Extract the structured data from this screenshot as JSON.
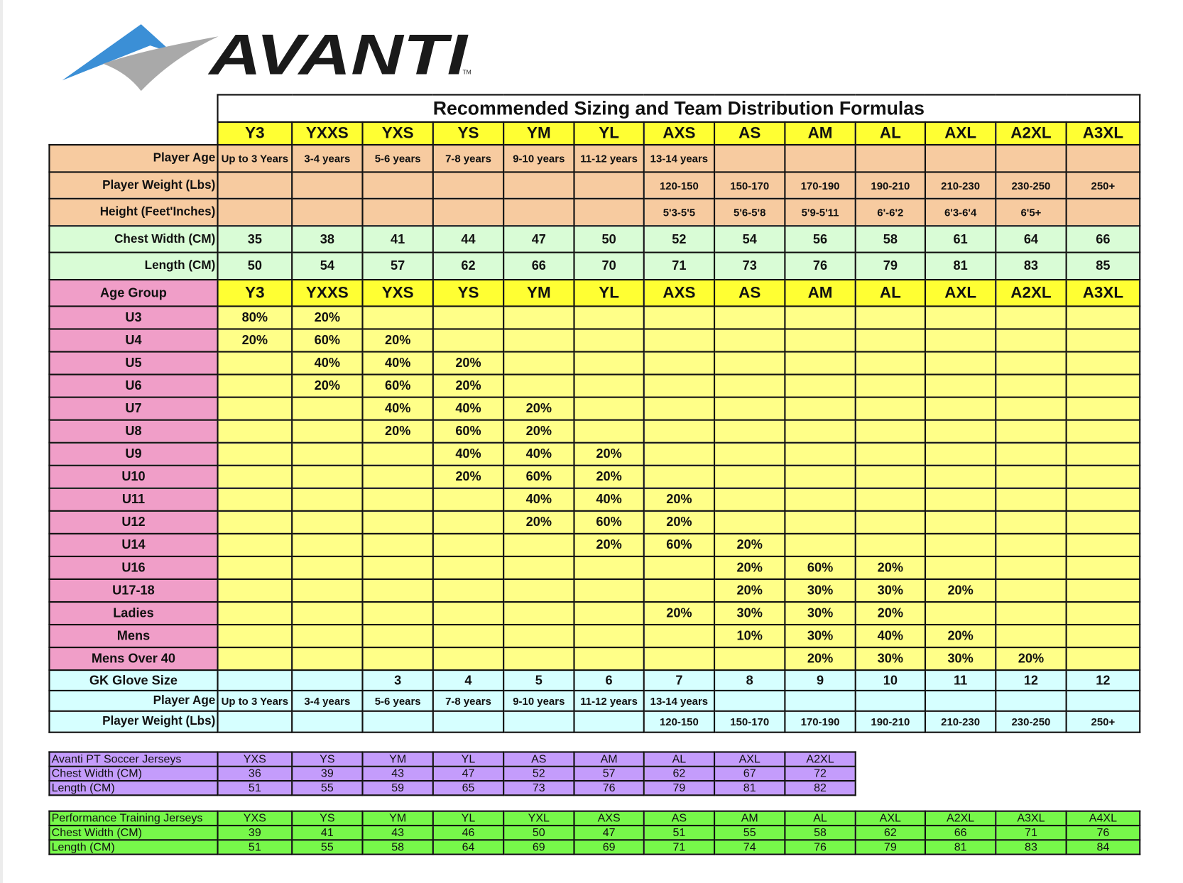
{
  "logo": {
    "text": "AVANTI",
    "tm": "TM",
    "colors": {
      "blue": "#3b8fd6",
      "gray": "#a9a9a9",
      "text": "#1a1a1a"
    }
  },
  "title": "Recommended Sizing and Team Distribution Formulas",
  "sizes": [
    "Y3",
    "YXXS",
    "YXS",
    "YS",
    "YM",
    "YL",
    "AXS",
    "AS",
    "AM",
    "AL",
    "AXL",
    "A2XL",
    "A3XL"
  ],
  "spec_rows": [
    {
      "label": "Player Age",
      "values": [
        "Up to 3 Years",
        "3-4 years",
        "5-6  years",
        "7-8 years",
        "9-10 years",
        "11-12 years",
        "13-14 years",
        "",
        "",
        "",
        "",
        "",
        ""
      ]
    },
    {
      "label": "Player Weight (Lbs)",
      "values": [
        "",
        "",
        "",
        "",
        "",
        "",
        "120-150",
        "150-170",
        "170-190",
        "190-210",
        "210-230",
        "230-250",
        "250+"
      ]
    },
    {
      "label": "Height (Feet'Inches)",
      "values": [
        "",
        "",
        "",
        "",
        "",
        "",
        "5'3-5'5",
        "5'6-5'8",
        "5'9-5'11",
        "6'-6'2",
        "6'3-6'4",
        "6'5+",
        ""
      ]
    },
    {
      "label": "Chest Width (CM)",
      "values": [
        "35",
        "38",
        "41",
        "44",
        "47",
        "50",
        "52",
        "54",
        "56",
        "58",
        "61",
        "64",
        "66"
      ]
    },
    {
      "label": "Length (CM)",
      "values": [
        "50",
        "54",
        "57",
        "62",
        "66",
        "70",
        "71",
        "73",
        "76",
        "79",
        "81",
        "83",
        "85"
      ]
    }
  ],
  "age_group_header": "Age Group",
  "distribution": [
    {
      "group": "U3",
      "values": [
        "80%",
        "20%",
        "",
        "",
        "",
        "",
        "",
        "",
        "",
        "",
        "",
        "",
        ""
      ]
    },
    {
      "group": "U4",
      "values": [
        "20%",
        "60%",
        "20%",
        "",
        "",
        "",
        "",
        "",
        "",
        "",
        "",
        "",
        ""
      ]
    },
    {
      "group": "U5",
      "values": [
        "",
        "40%",
        "40%",
        "20%",
        "",
        "",
        "",
        "",
        "",
        "",
        "",
        "",
        ""
      ]
    },
    {
      "group": "U6",
      "values": [
        "",
        "20%",
        "60%",
        "20%",
        "",
        "",
        "",
        "",
        "",
        "",
        "",
        "",
        ""
      ]
    },
    {
      "group": "U7",
      "values": [
        "",
        "",
        "40%",
        "40%",
        "20%",
        "",
        "",
        "",
        "",
        "",
        "",
        "",
        ""
      ]
    },
    {
      "group": "U8",
      "values": [
        "",
        "",
        "20%",
        "60%",
        "20%",
        "",
        "",
        "",
        "",
        "",
        "",
        "",
        ""
      ]
    },
    {
      "group": "U9",
      "values": [
        "",
        "",
        "",
        "40%",
        "40%",
        "20%",
        "",
        "",
        "",
        "",
        "",
        "",
        ""
      ]
    },
    {
      "group": "U10",
      "values": [
        "",
        "",
        "",
        "20%",
        "60%",
        "20%",
        "",
        "",
        "",
        "",
        "",
        "",
        ""
      ]
    },
    {
      "group": "U11",
      "values": [
        "",
        "",
        "",
        "",
        "40%",
        "40%",
        "20%",
        "",
        "",
        "",
        "",
        "",
        ""
      ]
    },
    {
      "group": "U12",
      "values": [
        "",
        "",
        "",
        "",
        "20%",
        "60%",
        "20%",
        "",
        "",
        "",
        "",
        "",
        ""
      ]
    },
    {
      "group": "U14",
      "values": [
        "",
        "",
        "",
        "",
        "",
        "20%",
        "60%",
        "20%",
        "",
        "",
        "",
        "",
        ""
      ]
    },
    {
      "group": "U16",
      "values": [
        "",
        "",
        "",
        "",
        "",
        "",
        "",
        "20%",
        "60%",
        "20%",
        "",
        "",
        ""
      ]
    },
    {
      "group": "U17-18",
      "values": [
        "",
        "",
        "",
        "",
        "",
        "",
        "",
        "20%",
        "30%",
        "30%",
        "20%",
        "",
        ""
      ]
    },
    {
      "group": "Ladies",
      "values": [
        "",
        "",
        "",
        "",
        "",
        "",
        "20%",
        "30%",
        "30%",
        "20%",
        "",
        "",
        ""
      ]
    },
    {
      "group": "Mens",
      "values": [
        "",
        "",
        "",
        "",
        "",
        "",
        "",
        "10%",
        "30%",
        "40%",
        "20%",
        "",
        ""
      ]
    },
    {
      "group": "Mens Over 40",
      "values": [
        "",
        "",
        "",
        "",
        "",
        "",
        "",
        "",
        "20%",
        "30%",
        "30%",
        "20%",
        ""
      ]
    }
  ],
  "gk_rows": [
    {
      "label": "GK Glove Size",
      "values": [
        "",
        "",
        "3",
        "4",
        "5",
        "6",
        "7",
        "8",
        "9",
        "10",
        "11",
        "12",
        "12"
      ]
    },
    {
      "label": "Player Age",
      "values": [
        "Up to 3 Years",
        "3-4 years",
        "5-6  years",
        "7-8 years",
        "9-10 years",
        "11-12 years",
        "13-14 years",
        "",
        "",
        "",
        "",
        "",
        ""
      ]
    },
    {
      "label": "Player Weight (Lbs)",
      "values": [
        "",
        "",
        "",
        "",
        "",
        "",
        "120-150",
        "150-170",
        "170-190",
        "190-210",
        "210-230",
        "230-250",
        "250+"
      ]
    }
  ],
  "pt_soccer": {
    "title": "Avanti PT Soccer Jerseys",
    "sizes": [
      "YXS",
      "YS",
      "YM",
      "YL",
      "AS",
      "AM",
      "AL",
      "AXL",
      "A2XL"
    ],
    "rows": [
      {
        "label": "Chest Width (CM)",
        "values": [
          "36",
          "39",
          "43",
          "47",
          "52",
          "57",
          "62",
          "67",
          "72"
        ]
      },
      {
        "label": "Length (CM)",
        "values": [
          "51",
          "55",
          "59",
          "65",
          "73",
          "76",
          "79",
          "81",
          "82"
        ]
      }
    ]
  },
  "performance": {
    "title": "Performance Training Jerseys",
    "sizes": [
      "YXS",
      "YS",
      "YM",
      "YL",
      "YXL",
      "AXS",
      "AS",
      "AM",
      "AL",
      "AXL",
      "A2XL",
      "A3XL",
      "A4XL"
    ],
    "rows": [
      {
        "label": "Chest Width (CM)",
        "values": [
          "39",
          "41",
          "43",
          "46",
          "50",
          "47",
          "51",
          "55",
          "58",
          "62",
          "66",
          "71",
          "76"
        ]
      },
      {
        "label": "Length (CM)",
        "values": [
          "51",
          "55",
          "58",
          "64",
          "69",
          "69",
          "71",
          "74",
          "76",
          "79",
          "81",
          "83",
          "84"
        ]
      }
    ]
  }
}
